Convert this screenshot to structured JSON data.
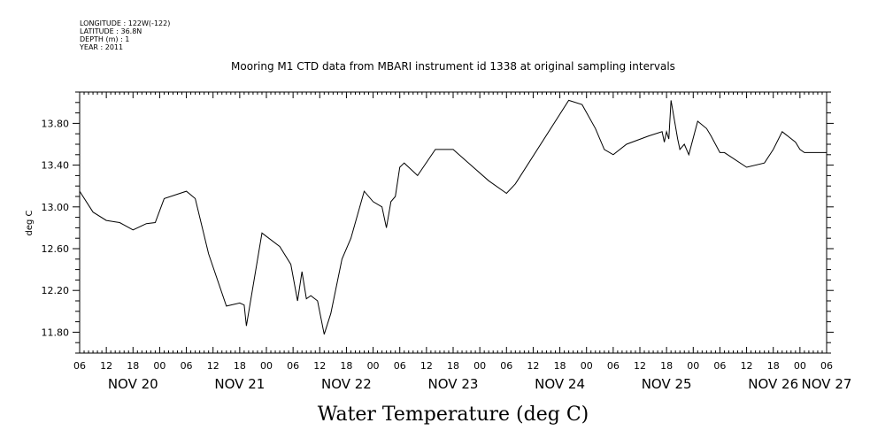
{
  "header": {
    "longitude": "LONGITUDE : 122W(-122)",
    "latitude": "LATITUDE : 36.8N",
    "depth": "DEPTH (m) : 1",
    "year": "YEAR : 2011"
  },
  "chart_data": {
    "type": "line",
    "title": "Mooring M1 CTD data from MBARI instrument id 1338 at original sampling intervals",
    "xlabel": "Water Temperature (deg C)",
    "ylabel": "deg C",
    "ylim": [
      11.6,
      14.1
    ],
    "yticks": [
      "11.80",
      "12.20",
      "12.60",
      "13.00",
      "13.40",
      "13.80"
    ],
    "ytick_values": [
      11.8,
      12.2,
      12.6,
      13.0,
      13.4,
      13.8
    ],
    "xlim": [
      "2011-11-20T06:00",
      "2011-11-27T06:00"
    ],
    "hour_ticks": [
      "06",
      "12",
      "18",
      "00",
      "06",
      "12",
      "18",
      "00",
      "06",
      "12",
      "18",
      "00",
      "06",
      "12",
      "18",
      "00",
      "06",
      "12",
      "18",
      "00",
      "06",
      "12",
      "18",
      "00",
      "06",
      "12",
      "18",
      "00",
      "06"
    ],
    "day_labels": [
      "NOV 20",
      "NOV 21",
      "NOV 22",
      "NOV 23",
      "NOV 24",
      "NOV 25",
      "NOV 26",
      "NOV 27"
    ],
    "grid": false,
    "series": [
      {
        "color": "#000000",
        "x": [
          "2011-11-20T06:00",
          "2011-11-20T09:00",
          "2011-11-20T12:00",
          "2011-11-20T15:00",
          "2011-11-20T18:00",
          "2011-11-20T21:00",
          "2011-11-20T23:00",
          "2011-11-21T01:00",
          "2011-11-21T06:00",
          "2011-11-21T08:00",
          "2011-11-21T11:00",
          "2011-11-21T15:00",
          "2011-11-21T18:00",
          "2011-11-21T19:00",
          "2011-11-21T19:30",
          "2011-11-21T23:00",
          "2011-11-22T03:00",
          "2011-11-22T05:30",
          "2011-11-22T07:00",
          "2011-11-22T08:00",
          "2011-11-22T09:00",
          "2011-11-22T10:00",
          "2011-11-22T11:30",
          "2011-11-22T13:00",
          "2011-11-22T14:30",
          "2011-11-22T17:00",
          "2011-11-22T19:00",
          "2011-11-22T22:00",
          "2011-11-23T00:00",
          "2011-11-23T02:00",
          "2011-11-23T03:00",
          "2011-11-23T04:00",
          "2011-11-23T05:00",
          "2011-11-23T06:00",
          "2011-11-23T07:00",
          "2011-11-23T10:00",
          "2011-11-23T14:00",
          "2011-11-23T18:00",
          "2011-11-23T22:00",
          "2011-11-24T02:00",
          "2011-11-24T06:00",
          "2011-11-24T08:00",
          "2011-11-24T20:00",
          "2011-11-24T23:00",
          "2011-11-25T02:00",
          "2011-11-25T04:00",
          "2011-11-25T06:00",
          "2011-11-25T09:00",
          "2011-11-25T14:00",
          "2011-11-25T17:00",
          "2011-11-25T17:30",
          "2011-11-25T18:00",
          "2011-11-25T18:30",
          "2011-11-25T19:00",
          "2011-11-25T20:30",
          "2011-11-25T21:00",
          "2011-11-25T22:00",
          "2011-11-25T23:00",
          "2011-11-26T01:00",
          "2011-11-26T03:00",
          "2011-11-26T04:00",
          "2011-11-26T05:00",
          "2011-11-26T06:00",
          "2011-11-26T07:00",
          "2011-11-26T12:00",
          "2011-11-26T16:00",
          "2011-11-26T18:00",
          "2011-11-26T20:00",
          "2011-11-26T23:00",
          "2011-11-27T00:00",
          "2011-11-27T01:00",
          "2011-11-27T02:00",
          "2011-11-27T06:00"
        ],
        "y": [
          13.15,
          12.95,
          12.87,
          12.85,
          12.78,
          12.84,
          12.85,
          13.08,
          13.15,
          13.08,
          12.55,
          12.05,
          12.08,
          12.06,
          11.86,
          12.75,
          12.62,
          12.45,
          12.1,
          12.38,
          12.12,
          12.15,
          12.1,
          11.78,
          11.98,
          12.5,
          12.7,
          13.15,
          13.05,
          13.0,
          12.8,
          13.05,
          13.1,
          13.38,
          13.42,
          13.3,
          13.55,
          13.55,
          13.4,
          13.25,
          13.13,
          13.22,
          14.02,
          13.98,
          13.75,
          13.55,
          13.5,
          13.6,
          13.68,
          13.72,
          13.62,
          13.72,
          13.65,
          14.02,
          13.65,
          13.55,
          13.6,
          13.5,
          13.82,
          13.75,
          13.68,
          13.6,
          13.52,
          13.52,
          13.38,
          13.42,
          13.55,
          13.72,
          13.62,
          13.55,
          13.52,
          13.52,
          13.52
        ]
      }
    ]
  }
}
